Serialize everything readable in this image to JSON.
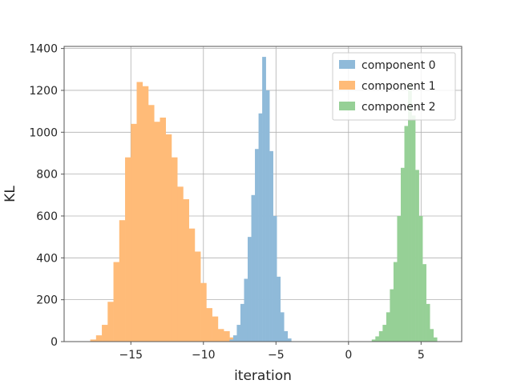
{
  "chart_data": {
    "type": "bar",
    "title": "",
    "xlabel": "iteration",
    "ylabel": "KL",
    "xlim": [
      -19.6,
      7.8
    ],
    "ylim": [
      0,
      1410
    ],
    "xticks": [
      -15,
      -10,
      -5,
      0,
      5
    ],
    "xtick_labels": [
      "−15",
      "−10",
      "−5",
      "0",
      "5"
    ],
    "yticks": [
      0,
      200,
      400,
      600,
      800,
      1000,
      1200,
      1400
    ],
    "ytick_labels": [
      "0",
      "200",
      "400",
      "600",
      "800",
      "1000",
      "1200",
      "1400"
    ],
    "grid": true,
    "legend_position": "top-right",
    "series": [
      {
        "name": "component 1",
        "color": "#ffbb78",
        "bin_edges": [
          -17.8,
          -17.4,
          -17.0,
          -16.6,
          -16.2,
          -15.8,
          -15.4,
          -15.0,
          -14.6,
          -14.2,
          -13.8,
          -13.4,
          -13.0,
          -12.6,
          -12.2,
          -11.8,
          -11.4,
          -11.0,
          -10.6,
          -10.2,
          -9.8,
          -9.4,
          -9.0,
          -8.6,
          -8.2,
          -7.8
        ],
        "counts": [
          10,
          30,
          80,
          190,
          380,
          580,
          880,
          1040,
          1240,
          1220,
          1130,
          1050,
          1070,
          990,
          880,
          740,
          680,
          540,
          430,
          280,
          160,
          120,
          60,
          50,
          20
        ]
      },
      {
        "name": "component 0",
        "color": "#8fbad9",
        "bin_edges": [
          -8.2,
          -7.95,
          -7.7,
          -7.45,
          -7.2,
          -6.95,
          -6.7,
          -6.45,
          -6.2,
          -5.95,
          -5.7,
          -5.45,
          -5.2,
          -4.95,
          -4.7,
          -4.45,
          -4.2,
          -3.95
        ],
        "counts": [
          10,
          30,
          80,
          180,
          300,
          500,
          700,
          920,
          1090,
          1360,
          1200,
          910,
          600,
          310,
          140,
          50,
          15
        ]
      },
      {
        "name": "component 2",
        "color": "#96d096",
        "bin_edges": [
          1.6,
          1.85,
          2.1,
          2.35,
          2.6,
          2.85,
          3.1,
          3.35,
          3.6,
          3.85,
          4.1,
          4.35,
          4.6,
          4.85,
          5.1,
          5.35,
          5.6,
          5.85,
          6.1
        ],
        "counts": [
          10,
          25,
          50,
          80,
          140,
          250,
          380,
          600,
          830,
          1030,
          1230,
          1080,
          820,
          600,
          370,
          180,
          60,
          20
        ]
      }
    ]
  }
}
